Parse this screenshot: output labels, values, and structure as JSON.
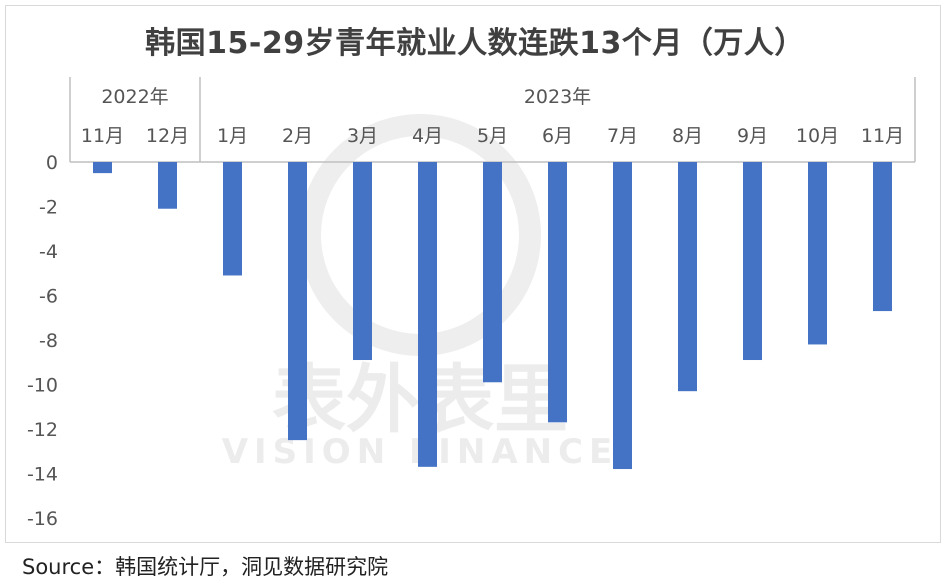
{
  "title": "韩国15-29岁青年就业人数连跌13个月（万人）",
  "source": "Source：韩国统计厅，洞见数据研究院",
  "watermark": {
    "cn": "表外表里",
    "en": "VISION FINANCE"
  },
  "colors": {
    "bar": "#4472c4",
    "axis": "#bfbfbf",
    "text": "#595959"
  },
  "chart_data": {
    "type": "bar",
    "title": "韩国15-29岁青年就业人数连跌13个月（万人）",
    "groups": [
      {
        "year": "2022年",
        "categories": [
          "11月",
          "12月"
        ]
      },
      {
        "year": "2023年",
        "categories": [
          "1月",
          "2月",
          "3月",
          "4月",
          "5月",
          "6月",
          "7月",
          "8月",
          "9月",
          "10月",
          "11月"
        ]
      }
    ],
    "categories": [
      "11月",
      "12月",
      "1月",
      "2月",
      "3月",
      "4月",
      "5月",
      "6月",
      "7月",
      "8月",
      "9月",
      "10月",
      "11月"
    ],
    "series": [
      {
        "values": [
          -0.5,
          -2.1,
          -5.1,
          -12.5,
          -8.9,
          -13.7,
          -9.9,
          -11.7,
          -13.8,
          -10.3,
          -8.9,
          -8.2,
          -6.7
        ]
      }
    ],
    "ylim": [
      -16,
      0
    ],
    "yticks": [
      0,
      -2,
      -4,
      -6,
      -8,
      -10,
      -12,
      -14,
      -16
    ],
    "ytick_labels": [
      "0",
      "-2",
      "-4",
      "-6",
      "-8",
      "-10",
      "-12",
      "-14",
      "-16"
    ]
  }
}
